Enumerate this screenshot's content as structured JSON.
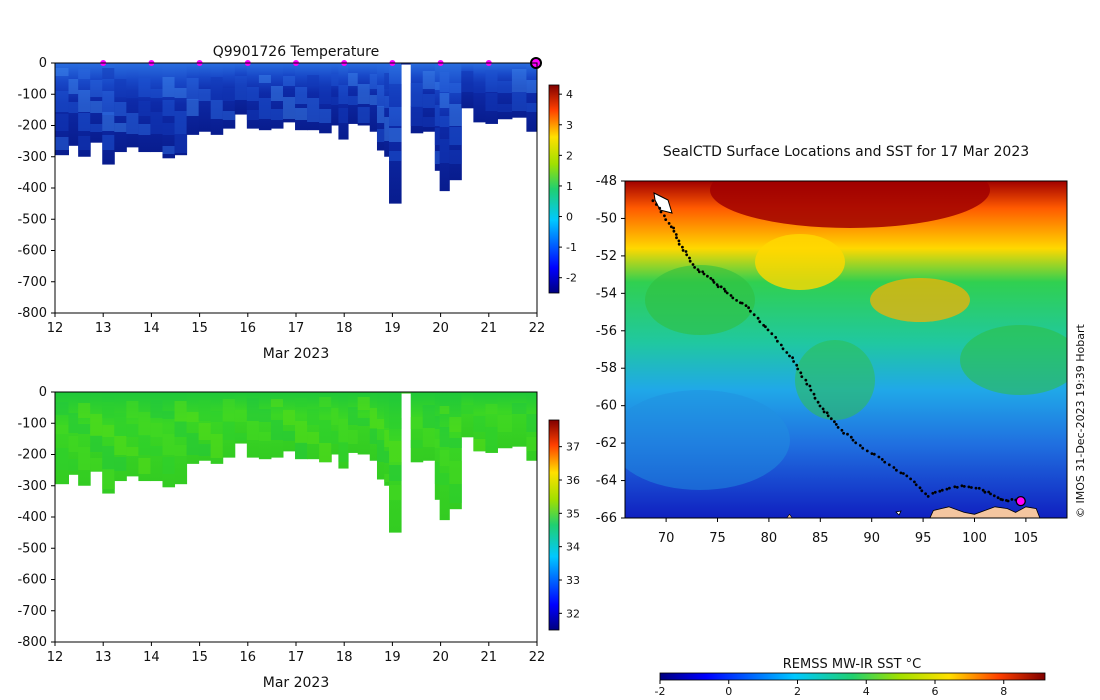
{
  "chart_data": [
    {
      "type": "heatmap",
      "title": "Q9901726  Temperature",
      "xlabel": "Mar 2023",
      "ylabel": "",
      "x_ticks": [
        "12",
        "13",
        "14",
        "15",
        "16",
        "17",
        "18",
        "19",
        "20",
        "21",
        "22"
      ],
      "xlim": [
        12,
        22
      ],
      "y_ticks": [
        "0",
        "-100",
        "-200",
        "-300",
        "-400",
        "-500",
        "-600",
        "-700",
        "-800"
      ],
      "ylim": [
        -800,
        0
      ],
      "profile_bottom_depth_by_day": [
        {
          "x": 12.1,
          "depth": -295
        },
        {
          "x": 12.4,
          "depth": -265
        },
        {
          "x": 12.6,
          "depth": -300
        },
        {
          "x": 12.85,
          "depth": -255
        },
        {
          "x": 13.1,
          "depth": -325
        },
        {
          "x": 13.35,
          "depth": -285
        },
        {
          "x": 13.6,
          "depth": -270
        },
        {
          "x": 13.85,
          "depth": -285
        },
        {
          "x": 14.1,
          "depth": -285
        },
        {
          "x": 14.35,
          "depth": -305
        },
        {
          "x": 14.6,
          "depth": -295
        },
        {
          "x": 14.85,
          "depth": -230
        },
        {
          "x": 15.1,
          "depth": -220
        },
        {
          "x": 15.35,
          "depth": -230
        },
        {
          "x": 15.6,
          "depth": -210
        },
        {
          "x": 15.85,
          "depth": -165
        },
        {
          "x": 16.1,
          "depth": -210
        },
        {
          "x": 16.35,
          "depth": -215
        },
        {
          "x": 16.6,
          "depth": -210
        },
        {
          "x": 16.85,
          "depth": -190
        },
        {
          "x": 17.1,
          "depth": -215
        },
        {
          "x": 17.35,
          "depth": -215
        },
        {
          "x": 17.6,
          "depth": -225
        },
        {
          "x": 17.85,
          "depth": -200
        },
        {
          "x": 18.0,
          "depth": -245
        },
        {
          "x": 18.2,
          "depth": -195
        },
        {
          "x": 18.4,
          "depth": -200
        },
        {
          "x": 18.65,
          "depth": -220
        },
        {
          "x": 18.8,
          "depth": -280
        },
        {
          "x": 18.95,
          "depth": -300
        },
        {
          "x": 19.05,
          "depth": -450
        },
        {
          "x": 19.3,
          "depth": -5
        },
        {
          "x": 19.5,
          "depth": -225
        },
        {
          "x": 19.75,
          "depth": -220
        },
        {
          "x": 20.0,
          "depth": -345
        },
        {
          "x": 20.1,
          "depth": -410
        },
        {
          "x": 20.3,
          "depth": -375
        },
        {
          "x": 20.55,
          "depth": -145
        },
        {
          "x": 20.8,
          "depth": -190
        },
        {
          "x": 21.05,
          "depth": -195
        },
        {
          "x": 21.3,
          "depth": -180
        },
        {
          "x": 21.6,
          "depth": -175
        },
        {
          "x": 21.9,
          "depth": -220
        }
      ],
      "surfacing_marker_days": [
        13,
        14,
        15,
        16,
        17,
        18,
        19,
        20,
        21,
        22
      ],
      "colorbar": {
        "ticks": [
          "4",
          "3",
          "2",
          "1",
          "0",
          "-1",
          "-2"
        ],
        "range": [
          -2.5,
          4.3
        ],
        "palette": "jet"
      },
      "colors": {
        "shallow": "#1f5fd0",
        "deep": "#0a1a8c",
        "marker": "#ff00ff"
      }
    },
    {
      "type": "heatmap",
      "title": "",
      "xlabel": "Mar 2023",
      "x_ticks": [
        "12",
        "13",
        "14",
        "15",
        "16",
        "17",
        "18",
        "19",
        "20",
        "21",
        "22"
      ],
      "xlim": [
        12,
        22
      ],
      "y_ticks": [
        "0",
        "-100",
        "-200",
        "-300",
        "-400",
        "-500",
        "-600",
        "-700",
        "-800"
      ],
      "ylim": [
        -800,
        0
      ],
      "colorbar": {
        "ticks": [
          "37",
          "36",
          "35",
          "34",
          "33",
          "32"
        ],
        "range": [
          31.5,
          37.8
        ],
        "palette": "jet"
      },
      "colors": {
        "shallow": "#39d12a",
        "deep": "#30c820"
      }
    },
    {
      "type": "heatmap",
      "title": "SealCTD Surface Locations and SST for 17 Mar 2023",
      "xlabel": "",
      "x_ticks": [
        "70",
        "75",
        "80",
        "85",
        "90",
        "95",
        "100",
        "105"
      ],
      "xlim": [
        66,
        109
      ],
      "y_ticks": [
        "-48",
        "-50",
        "-52",
        "-54",
        "-56",
        "-58",
        "-60",
        "-62",
        "-64",
        "-66"
      ],
      "ylim": [
        -66,
        -48
      ],
      "track": [
        {
          "lon": 68.8,
          "lat": -49.1
        },
        {
          "lon": 70.5,
          "lat": -50.4
        },
        {
          "lon": 71.5,
          "lat": -51.5
        },
        {
          "lon": 72.8,
          "lat": -52.6
        },
        {
          "lon": 74.5,
          "lat": -53.3
        },
        {
          "lon": 76.0,
          "lat": -54.0
        },
        {
          "lon": 78.0,
          "lat": -54.8
        },
        {
          "lon": 80.0,
          "lat": -56.0
        },
        {
          "lon": 82.0,
          "lat": -57.3
        },
        {
          "lon": 83.5,
          "lat": -58.6
        },
        {
          "lon": 85.0,
          "lat": -60.0
        },
        {
          "lon": 86.5,
          "lat": -61.0
        },
        {
          "lon": 88.5,
          "lat": -62.0
        },
        {
          "lon": 91.0,
          "lat": -62.9
        },
        {
          "lon": 93.5,
          "lat": -63.8
        },
        {
          "lon": 95.5,
          "lat": -64.8
        },
        {
          "lon": 98.0,
          "lat": -64.3
        },
        {
          "lon": 100.5,
          "lat": -64.4
        },
        {
          "lon": 102.5,
          "lat": -65.0
        },
        {
          "lon": 104.5,
          "lat": -65.1
        }
      ],
      "current_position": {
        "lon": 104.5,
        "lat": -65.1
      },
      "colorbar": {
        "label": "REMSS MW-IR SST °C",
        "ticks": [
          "-2",
          "0",
          "2",
          "4",
          "6",
          "8"
        ],
        "range": [
          -2,
          9.2
        ],
        "palette": "jet"
      },
      "colors": {
        "land": "#f4c6a0",
        "track": "#000000",
        "marker": "#ff00ff"
      }
    }
  ],
  "credit": "© IMOS 31-Dec-2023 19:39 Hobart"
}
